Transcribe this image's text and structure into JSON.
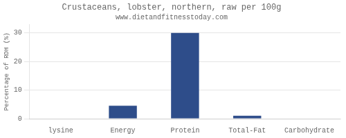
{
  "chart_data": {
    "type": "bar",
    "title": "Crustaceans, lobster, northern, raw per 100g",
    "subtitle": "www.dietandfitnesstoday.com",
    "categories": [
      "lysine",
      "Energy",
      "Protein",
      "Total-Fat",
      "Carbohydrate"
    ],
    "values": [
      0,
      4.5,
      30,
      1.0,
      0
    ],
    "color": "#2e4d8a",
    "ylabel": "Percentage of RDH (%)",
    "ylim": [
      0,
      33
    ],
    "yticks": [
      0,
      10,
      20,
      30
    ],
    "grid": true
  }
}
